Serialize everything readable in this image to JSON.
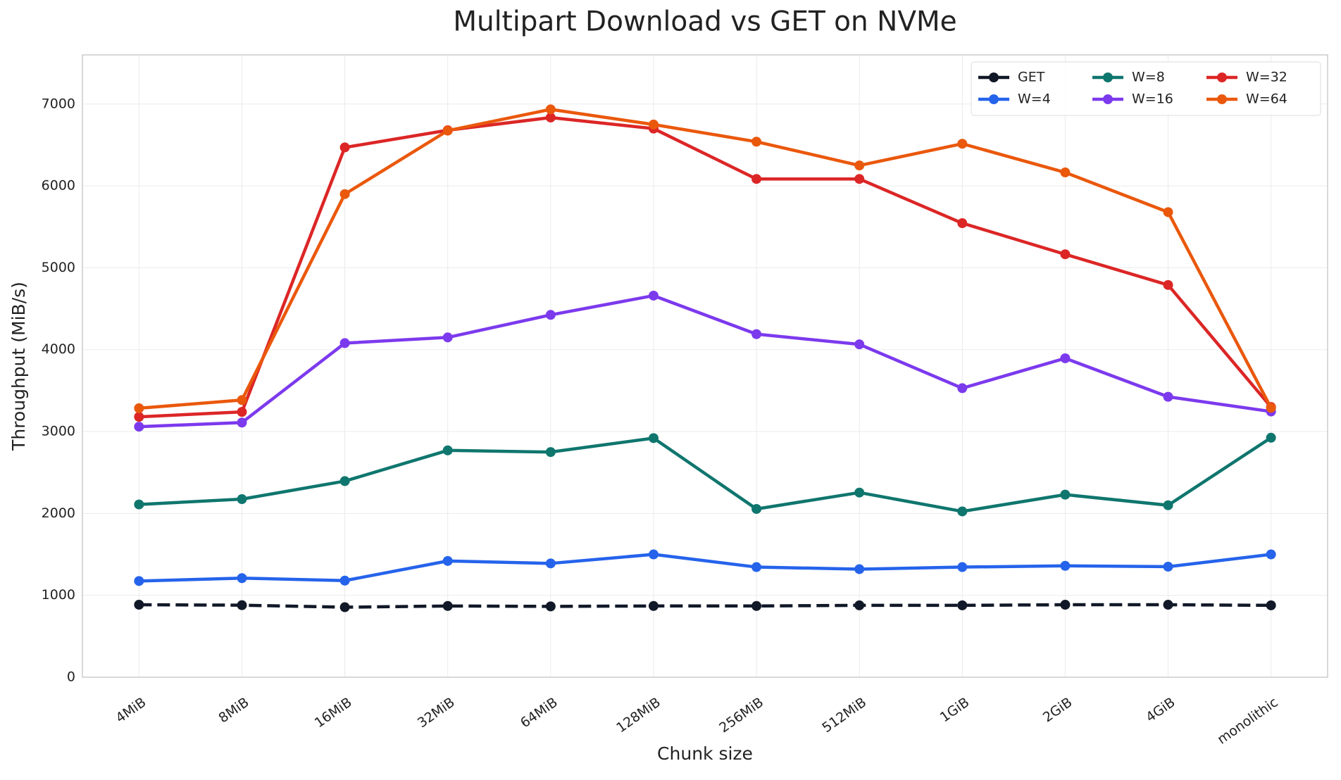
{
  "chart_data": {
    "type": "line",
    "title": "Multipart Download vs GET on NVMe",
    "x_label": "Chunk size",
    "y_label": "Throughput (MiB/s)",
    "categories": [
      "4MiB",
      "8MiB",
      "16MiB",
      "32MiB",
      "64MiB",
      "128MiB",
      "256MiB",
      "512MiB",
      "1GiB",
      "2GiB",
      "4GiB",
      "monolithic"
    ],
    "series": [
      {
        "name": "GET",
        "color": "#111827",
        "linestyle": "dashed",
        "values": [
          885,
          880,
          855,
          870,
          865,
          870,
          870,
          878,
          878,
          885,
          885,
          878
        ]
      },
      {
        "name": "W=4",
        "color": "#2563eb",
        "linestyle": "solid",
        "values": [
          1175,
          1210,
          1180,
          1420,
          1390,
          1500,
          1345,
          1320,
          1345,
          1360,
          1350,
          1500
        ]
      },
      {
        "name": "W=8",
        "color": "#0f766e",
        "linestyle": "solid",
        "values": [
          2110,
          2175,
          2395,
          2770,
          2750,
          2920,
          2055,
          2255,
          2025,
          2230,
          2100,
          2925
        ]
      },
      {
        "name": "W=16",
        "color": "#7c3aed",
        "linestyle": "solid",
        "values": [
          3060,
          3110,
          4080,
          4150,
          4425,
          4660,
          4190,
          4065,
          3530,
          3895,
          3425,
          3245
        ]
      },
      {
        "name": "W=32",
        "color": "#dc2626",
        "linestyle": "solid",
        "values": [
          3180,
          3240,
          6470,
          6680,
          6835,
          6700,
          6085,
          6085,
          5545,
          5165,
          4790,
          3300
        ]
      },
      {
        "name": "W=64",
        "color": "#ea580c",
        "linestyle": "solid",
        "values": [
          3285,
          3385,
          5900,
          6675,
          6935,
          6750,
          6540,
          6250,
          6515,
          6165,
          5680,
          3290
        ]
      }
    ],
    "ylim": [
      0,
      7600
    ],
    "yticks": [
      0,
      1000,
      2000,
      3000,
      4000,
      5000,
      6000,
      7000
    ],
    "grid": true,
    "legend": "upper right",
    "legend_columns": 3
  }
}
